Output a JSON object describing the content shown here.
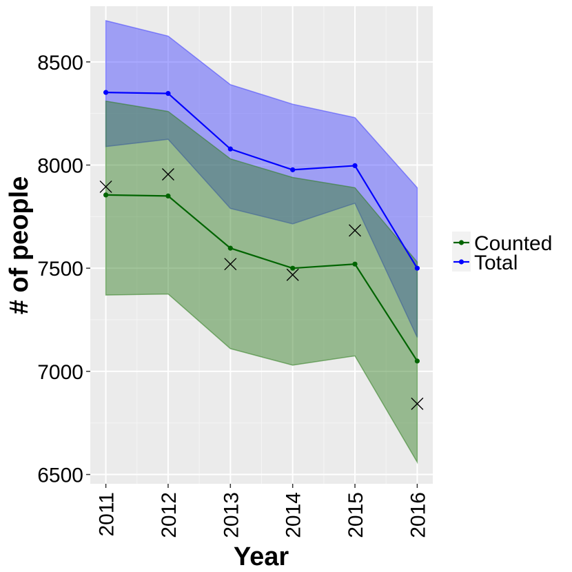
{
  "chart_data": {
    "type": "line",
    "title": "",
    "xlabel": "Year",
    "ylabel": "# of people",
    "x": [
      2011,
      2012,
      2013,
      2014,
      2015,
      2016
    ],
    "x_tick_labels": [
      "2011",
      "2012",
      "2013",
      "2014",
      "2015",
      "2016"
    ],
    "y_ticks": [
      6500,
      7000,
      7500,
      8000,
      8500
    ],
    "y_tick_labels": [
      "6500",
      "7000",
      "7500",
      "8000",
      "8500"
    ],
    "ylim": [
      6455,
      8770
    ],
    "xlim": [
      2010.75,
      2016.25
    ],
    "grid": true,
    "legend_position": "right",
    "series": [
      {
        "name": "Counted",
        "color": "#006400",
        "band_color": "#2E7D1E",
        "values": [
          7855,
          7850,
          7597,
          7500,
          7520,
          7050
        ],
        "lower": [
          7370,
          7375,
          7110,
          7030,
          7075,
          6560
        ],
        "upper": [
          8310,
          8260,
          8030,
          7940,
          7890,
          7530
        ]
      },
      {
        "name": "Total",
        "color": "#0000FF",
        "band_color": "#4040FF",
        "values": [
          8352,
          8347,
          8078,
          7977,
          7997,
          7500
        ],
        "lower": [
          8090,
          8125,
          7790,
          7715,
          7815,
          7165
        ],
        "upper": [
          8700,
          8625,
          8390,
          8295,
          8230,
          7890
        ]
      }
    ],
    "observed": {
      "marker": "x",
      "values": [
        7895,
        7955,
        7520,
        7468,
        7683,
        6843
      ]
    }
  }
}
